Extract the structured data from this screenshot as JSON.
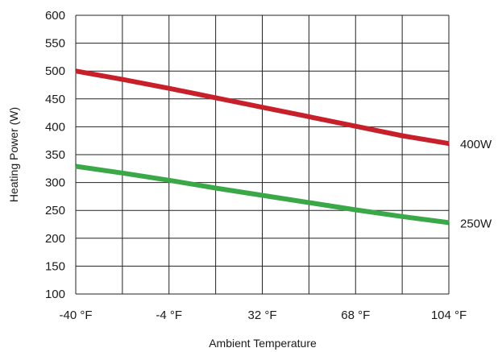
{
  "chart_data": {
    "type": "line",
    "xlabel": "Ambient Temperature",
    "ylabel": "Heating Power (W)",
    "x_tick_labels": [
      "-40 °F",
      "-4 °F",
      "32 °F",
      "68 °F",
      "104 °F"
    ],
    "x_ticks": [
      -40,
      -4,
      32,
      68,
      104
    ],
    "xlim": [
      -40,
      104
    ],
    "ylim": [
      100,
      600
    ],
    "y_ticks": [
      100,
      150,
      200,
      250,
      300,
      350,
      400,
      450,
      500,
      550,
      600
    ],
    "grid": true,
    "legend": "inline-right",
    "series": [
      {
        "name": "400W",
        "color": "#c8202a",
        "x": [
          -40,
          -22,
          -4,
          14,
          32,
          50,
          68,
          86,
          104
        ],
        "y": [
          500,
          485,
          469,
          452,
          435,
          418,
          401,
          384,
          370
        ]
      },
      {
        "name": "250W",
        "color": "#3aa846",
        "x": [
          -40,
          -22,
          -4,
          14,
          32,
          50,
          68,
          86,
          104
        ],
        "y": [
          329,
          317,
          304,
          290,
          277,
          264,
          251,
          239,
          228
        ]
      }
    ]
  }
}
